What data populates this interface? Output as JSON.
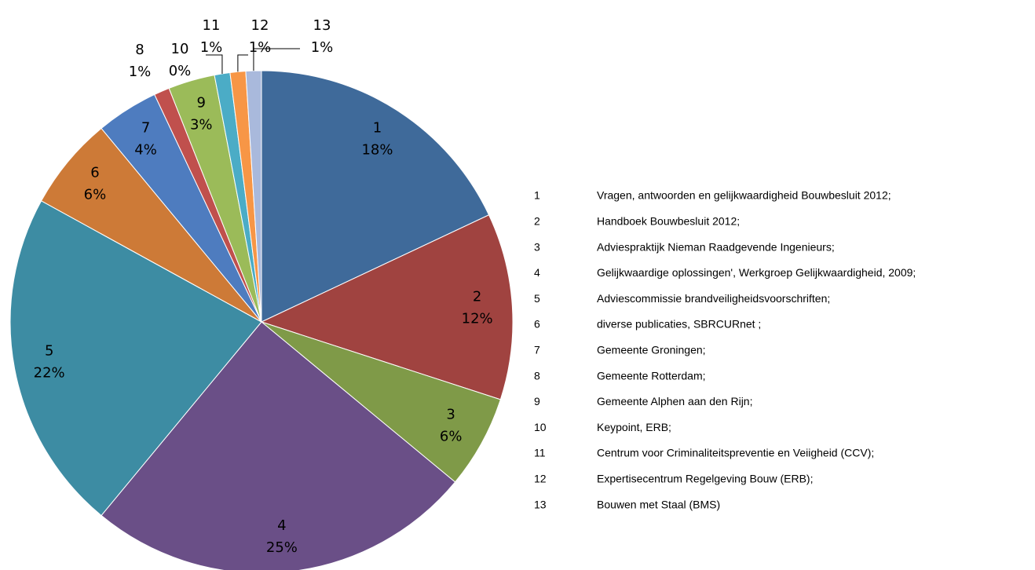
{
  "chart_data": {
    "type": "pie",
    "categories": [
      "1",
      "2",
      "3",
      "4",
      "5",
      "6",
      "7",
      "8",
      "9",
      "10",
      "11",
      "12",
      "13"
    ],
    "values": [
      18,
      12,
      6,
      25,
      22,
      6,
      4,
      1,
      3,
      0,
      1,
      1,
      1
    ],
    "value_labels": [
      "18%",
      "12%",
      "6%",
      "25%",
      "22%",
      "6%",
      "4%",
      "1%",
      "3%",
      "0%",
      "1%",
      "1%",
      "1%"
    ],
    "colors": [
      "#3f6a9a",
      "#a04340",
      "#7f9a48",
      "#6a4f87",
      "#3d8ca3",
      "#cd7a37",
      "#4e7cbf",
      "#c0504d",
      "#9bbb59",
      "#8064a2",
      "#4bacc6",
      "#f79646",
      "#a9b9dc"
    ],
    "descriptions": [
      "Vragen, antwoorden en gelijkwaardigheid Bouwbesluit 2012;",
      "Handboek Bouwbesluit 2012;",
      "Adviespraktijk Nieman Raadgevende Ingenieurs;",
      "Gelijkwaardige oplossingen', Werkgroep Gelijkwaardigheid, 2009;",
      "Adviescommissie brandveiligheidsvoorschriften;",
      "diverse publicaties, SBRCURnet ;",
      "Gemeente Groningen;",
      "Gemeente Rotterdam;",
      "Gemeente Alphen aan den Rijn;",
      "Keypoint, ERB;",
      "Centrum voor Criminaliteitspreventie en Veiigheid (CCV);",
      "Expertisecentrum Regelgeving Bouw (ERB);",
      "Bouwen met Staal (BMS)"
    ]
  }
}
